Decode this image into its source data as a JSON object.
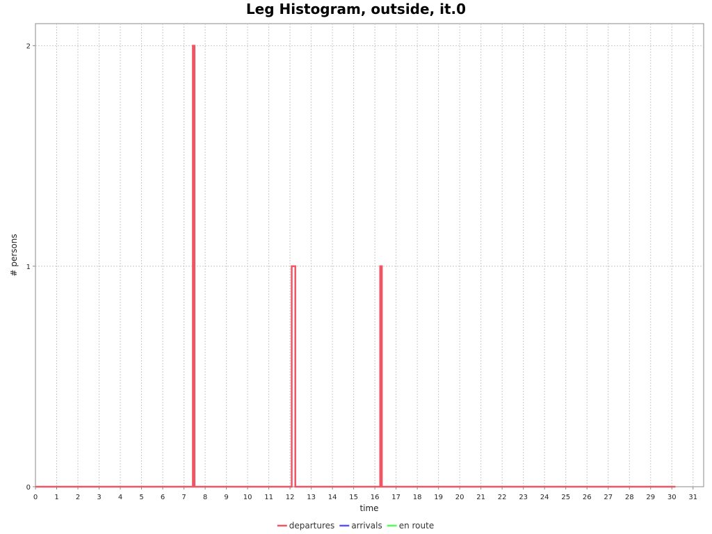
{
  "chart_data": {
    "type": "line",
    "title": "Leg Histogram, outside, it.0",
    "xlabel": "time",
    "ylabel": "# persons",
    "xlim": [
      0,
      31.5
    ],
    "ylim": [
      0,
      2.1
    ],
    "xticks": [
      "0",
      "1",
      "2",
      "3",
      "4",
      "5",
      "6",
      "7",
      "8",
      "9",
      "10",
      "11",
      "12",
      "13",
      "14",
      "15",
      "16",
      "17",
      "18",
      "19",
      "20",
      "21",
      "22",
      "23",
      "24",
      "25",
      "26",
      "27",
      "28",
      "29",
      "30",
      "31"
    ],
    "yticks": [
      "0",
      "1",
      "2"
    ],
    "grid": true,
    "legend_position": "bottom",
    "series": [
      {
        "name": "departures",
        "color": "#f05565",
        "points": [
          [
            0,
            0
          ],
          [
            7.42,
            0
          ],
          [
            7.42,
            2
          ],
          [
            7.5,
            2
          ],
          [
            7.5,
            0
          ],
          [
            12.08,
            0
          ],
          [
            12.08,
            1
          ],
          [
            12.25,
            1
          ],
          [
            12.25,
            0
          ],
          [
            16.25,
            0
          ],
          [
            16.25,
            1
          ],
          [
            16.33,
            1
          ],
          [
            16.33,
            0
          ],
          [
            30.17,
            0
          ]
        ]
      },
      {
        "name": "arrivals",
        "color": "#5555ff",
        "points": []
      },
      {
        "name": "en route",
        "color": "#55ff55",
        "points": []
      }
    ]
  }
}
